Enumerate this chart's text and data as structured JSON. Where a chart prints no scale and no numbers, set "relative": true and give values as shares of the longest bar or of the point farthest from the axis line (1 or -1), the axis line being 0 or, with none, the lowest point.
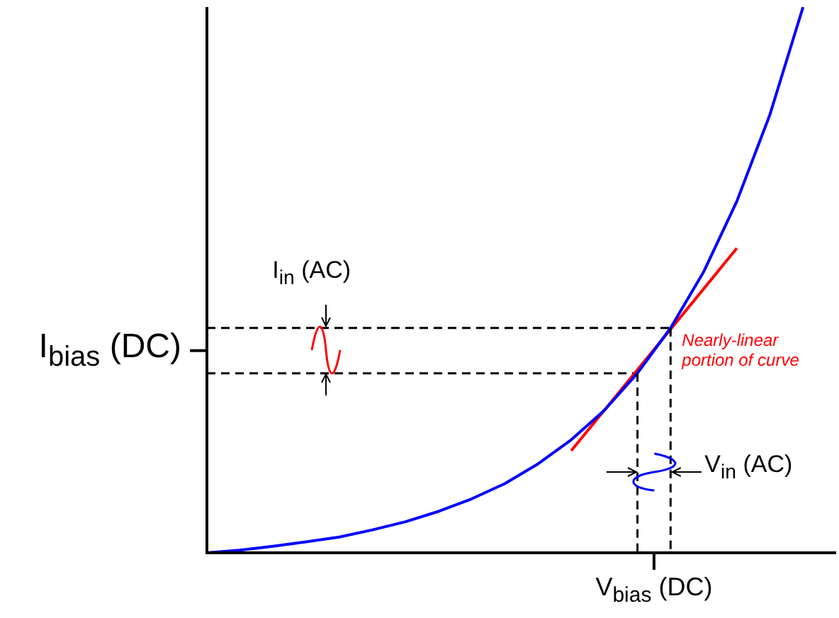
{
  "chart_data": {
    "type": "line",
    "relative": true,
    "marker": "none",
    "legend": false,
    "xlabel": "V$_{bias}$ (DC)",
    "ylabel": "I$_{bias}$ (DC)",
    "annotations": [
      "I$_{in}$ (AC)",
      "Nearly-linear\nportion of curve",
      "V$_{in}$ (AC)"
    ],
    "categories": [
      null,
      null,
      null,
      null,
      null,
      null,
      null,
      null,
      null,
      null,
      null,
      null,
      null,
      null,
      null,
      null,
      null,
      null,
      null,
      null
    ],
    "series": [
      {
        "color": "#0000ff",
        "values": [
          0,
          0.005,
          0.012,
          0.02,
          0.029,
          0.042,
          0.057,
          0.076,
          0.099,
          0.127,
          0.163,
          0.207,
          0.261,
          0.329,
          0.412,
          0.515,
          0.644,
          0.803,
          1,
          null
        ]
      },
      {
        "color": "#ff0000",
        "values": [
          null,
          null,
          null,
          null,
          null,
          null,
          null,
          null,
          null,
          null,
          null,
          0.187,
          null,
          null,
          null,
          null,
          0.558,
          null,
          null,
          null
        ]
      },
      {
        "color": "#000000",
        "line_style": "dashed",
        "values": [
          0.329,
          0.329,
          0.329,
          0.329,
          0.329,
          0.329,
          0.329,
          0.329,
          0.329,
          0.329,
          0.329,
          0.329,
          0.329,
          0.329,
          null,
          null,
          null,
          null,
          null,
          null
        ]
      },
      {
        "color": "#000000",
        "line_style": "dashed",
        "values": [
          0.412,
          0.412,
          0.412,
          0.412,
          0.412,
          0.412,
          0.412,
          0.412,
          0.412,
          0.412,
          0.412,
          0.412,
          0.412,
          0.412,
          0.412,
          null,
          null,
          null,
          null,
          null
        ]
      }
    ]
  }
}
